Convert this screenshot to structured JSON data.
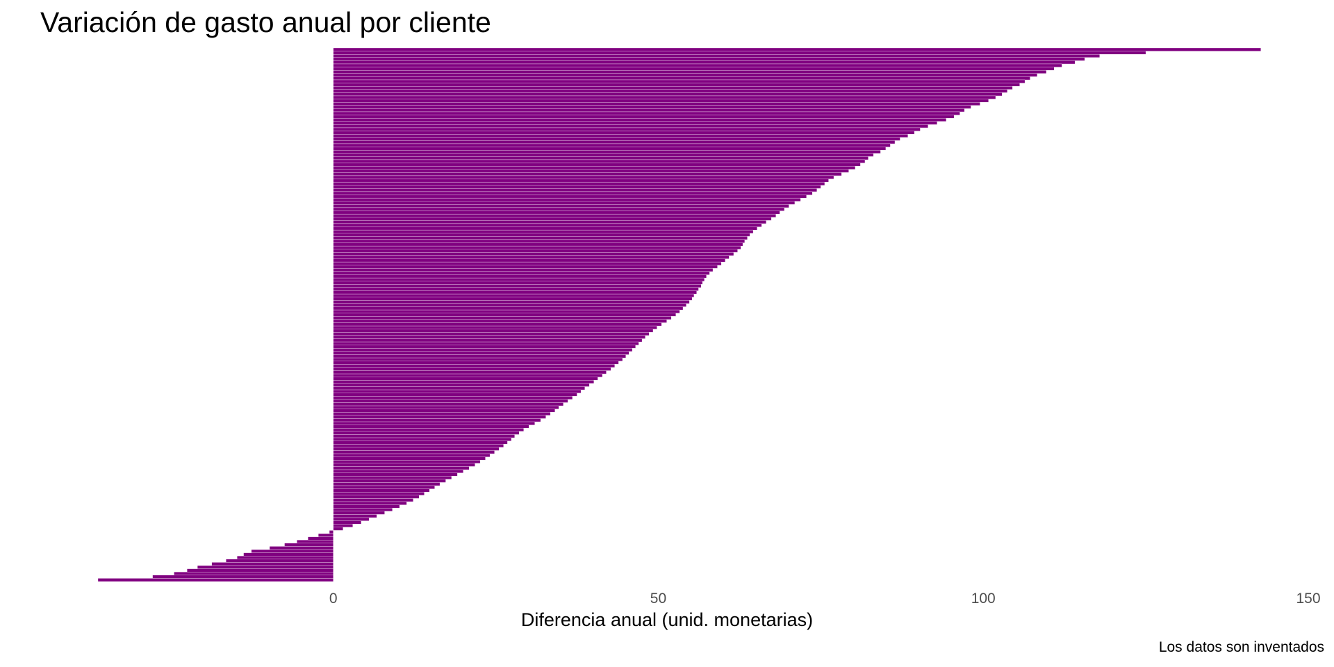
{
  "chart_data": {
    "type": "bar",
    "orientation": "horizontal",
    "title": "Variación de gasto anual por cliente",
    "xlabel": "Diferencia anual (unid. monetarias)",
    "ylabel": "",
    "caption": "Los datos son inventados",
    "xlim": [
      -36.2,
      150
    ],
    "x_ticks": [
      0,
      50,
      100,
      150
    ],
    "x_tick_labels": [
      "0",
      "50",
      "100",
      "150"
    ],
    "grid": false,
    "legend": "none",
    "sort": "descending",
    "bar_color": "#800080",
    "bar_outline_color": "#ffffff",
    "values": [
      142.7,
      125.0,
      117.9,
      115.6,
      114.1,
      112.1,
      110.9,
      109.7,
      108.3,
      107.2,
      106.4,
      105.6,
      104.5,
      103.7,
      102.9,
      101.9,
      100.8,
      99.5,
      98.1,
      97.1,
      96.4,
      95.5,
      94.3,
      92.9,
      91.5,
      90.3,
      89.4,
      88.4,
      87.2,
      86.4,
      85.7,
      85.0,
      84.2,
      83.1,
      82.3,
      81.8,
      81.1,
      80.3,
      79.3,
      78.2,
      77.0,
      76.2,
      75.6,
      75.0,
      74.4,
      73.7,
      72.8,
      71.9,
      71.0,
      70.1,
      69.4,
      68.7,
      68.1,
      67.4,
      66.6,
      65.9,
      65.2,
      64.6,
      64.1,
      63.7,
      63.3,
      63.0,
      62.7,
      62.2,
      61.6,
      60.9,
      60.3,
      59.7,
      59.1,
      58.4,
      57.9,
      57.4,
      57.1,
      56.8,
      56.6,
      56.2,
      55.9,
      55.5,
      55.2,
      54.8,
      54.3,
      53.8,
      53.3,
      52.7,
      52.0,
      51.3,
      50.5,
      49.8,
      49.2,
      48.6,
      48.0,
      47.5,
      47.0,
      46.5,
      46.0,
      45.5,
      45.0,
      44.5,
      43.9,
      43.3,
      42.7,
      42.0,
      41.4,
      40.7,
      40.1,
      39.4,
      38.7,
      38.1,
      37.5,
      36.8,
      36.1,
      35.4,
      34.7,
      34.1,
      33.4,
      32.7,
      31.9,
      31.0,
      30.1,
      29.3,
      28.6,
      27.9,
      27.4,
      26.8,
      26.2,
      25.5,
      24.8,
      24.1,
      23.4,
      22.6,
      21.8,
      20.9,
      20.0,
      19.1,
      18.2,
      17.3,
      16.4,
      15.6,
      14.8,
      14.0,
      13.2,
      12.3,
      11.3,
      10.2,
      9.1,
      7.9,
      6.7,
      5.5,
      4.3,
      3.0,
      1.5,
      -0.6,
      -2.3,
      -3.9,
      -5.6,
      -7.5,
      -9.8,
      -12.6,
      -13.8,
      -14.8,
      -16.5,
      -18.7,
      -20.9,
      -22.5,
      -24.5,
      -27.8,
      -36.2
    ]
  }
}
